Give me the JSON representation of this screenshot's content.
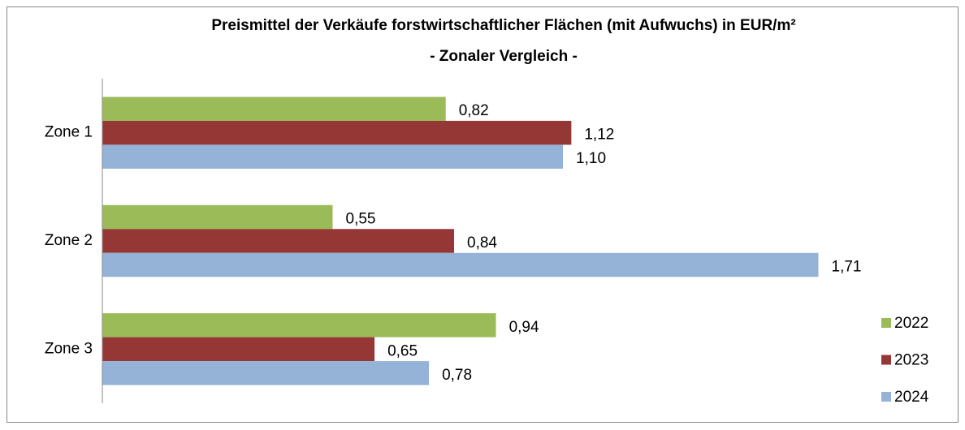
{
  "chart_data": {
    "type": "hbar",
    "title": "Preismittel der Verkäufe forstwirtschaftlicher Flächen (mit Aufwuchs) in EUR/m²",
    "subtitle": "- Zonaler Vergleich -",
    "categories": [
      "Zone 1",
      "Zone 2",
      "Zone 3"
    ],
    "series": [
      {
        "name": "2022",
        "color": "#9bbb59",
        "values": [
          0.82,
          0.55,
          0.94
        ],
        "value_labels": [
          "0,82",
          "0,55",
          "0,94"
        ]
      },
      {
        "name": "2023",
        "color": "#953735",
        "values": [
          1.12,
          0.84,
          0.65
        ],
        "value_labels": [
          "1,12",
          "0,84",
          "0,65"
        ]
      },
      {
        "name": "2024",
        "color": "#95b3d7",
        "values": [
          1.1,
          1.71,
          0.78
        ],
        "value_labels": [
          "1,10",
          "1,71",
          "0,78"
        ]
      }
    ],
    "xlim": [
      0,
      2
    ],
    "legend": "right"
  }
}
